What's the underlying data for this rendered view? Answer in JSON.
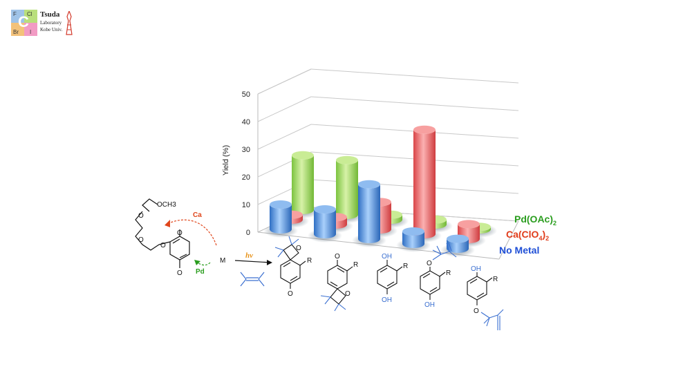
{
  "logo": {
    "cells": [
      "F",
      "Cl",
      "Br",
      "I"
    ],
    "big_letter": "C",
    "name": "Tsuda",
    "line2": "Laboratory",
    "line3": "Kobe Univ."
  },
  "chart_data": {
    "type": "bar",
    "style": "3d-cylinder",
    "ylabel": "Yield (%)",
    "ylim": [
      0,
      50
    ],
    "yticks": [
      0,
      10,
      20,
      30,
      40,
      50
    ],
    "grid": true,
    "categories": [
      "spiro-oxetane (upper)",
      "spiro-oxetane (lower)",
      "catechol",
      "aryl ether (p-OH)",
      "aryl ether (o-OH)"
    ],
    "series": [
      {
        "name": "Pd(OAc)2",
        "color": "#8ed14f",
        "values": [
          22,
          22,
          2,
          2,
          1
        ]
      },
      {
        "name": "Ca(ClO4)2",
        "color": "#e8575a",
        "values": [
          2,
          3,
          11,
          42,
          6
        ]
      },
      {
        "name": "No Metal",
        "color": "#3f86d8",
        "values": [
          10,
          10,
          22,
          5,
          4
        ]
      }
    ],
    "legend_labels": [
      {
        "main": "Pd(OAc)",
        "sub": "2",
        "tail": "",
        "color": "#2a9d1e"
      },
      {
        "main": "Ca(ClO",
        "sub": "4",
        "tail": ")2",
        "color": "#e03c1a"
      },
      {
        "main": "No Metal",
        "sub": "",
        "tail": "",
        "color": "#1f4fd6"
      }
    ]
  },
  "scheme": {
    "ca_label": "Ca",
    "pd_label": "Pd",
    "ome": "OCH3",
    "m_label": "M",
    "hv_label": "hν",
    "carbonyl_o": "O",
    "ring_o": "O",
    "oh": "OH",
    "r": "R"
  }
}
